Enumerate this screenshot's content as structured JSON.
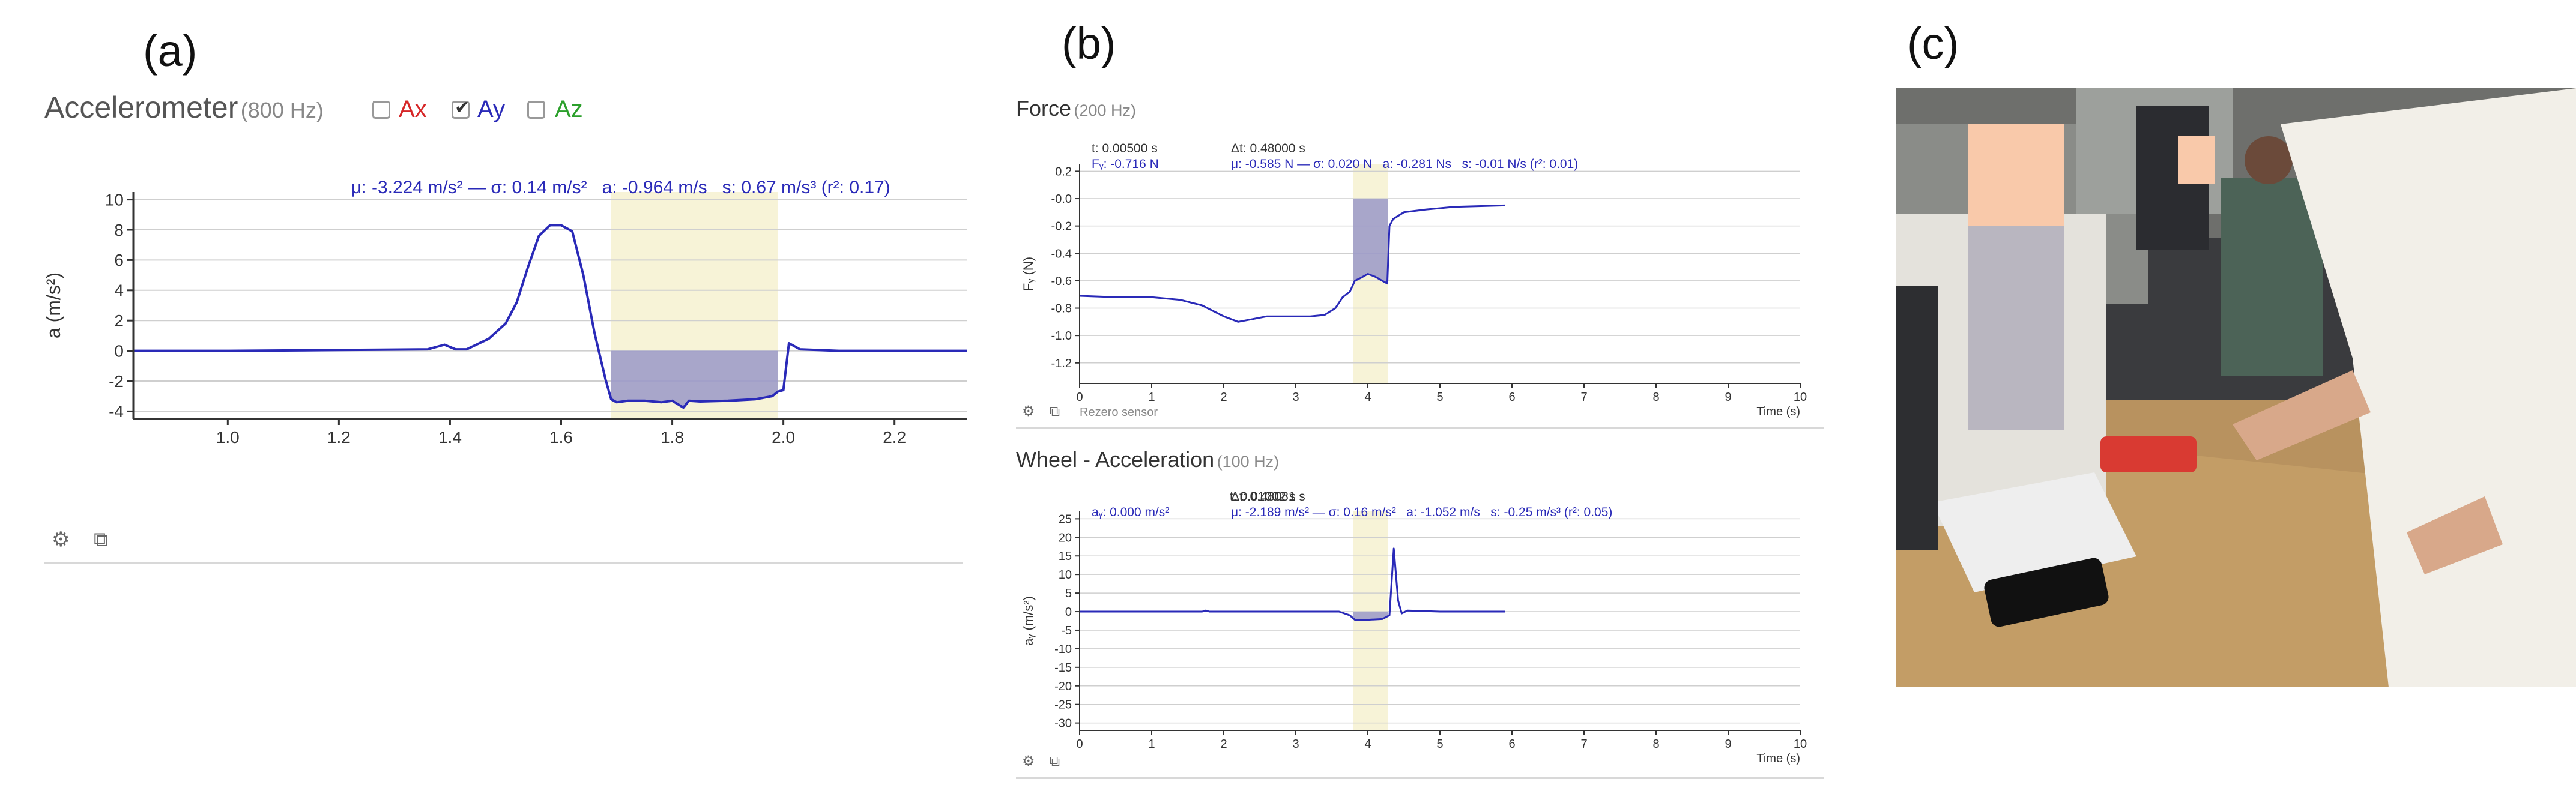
{
  "panel_labels": {
    "a": "(a)",
    "b": "(b)",
    "c": "(c)"
  },
  "accelerometer": {
    "title": "Accelerometer",
    "rate": "(800 Hz)",
    "checkboxes": [
      {
        "label": "Ax",
        "checked": false,
        "color": "#d62728"
      },
      {
        "label": "Ay",
        "checked": true,
        "color": "#2a2ab8"
      },
      {
        "label": "Az",
        "checked": false,
        "color": "#2ca02c"
      }
    ],
    "stats_text": "μ: -3.224 m/s² — σ: 0.14 m/s²   a: -0.964 m/s   s: 0.67 m/s³ (r²: 0.17)",
    "icons": [
      "gear-icon",
      "external-link-icon"
    ]
  },
  "force": {
    "title": "Force",
    "rate": "(200 Hz)",
    "readout_t": "t: 0.00500 s",
    "readout_dt": "Δt: 0.48000 s",
    "readout_val": "Fᵧ: -0.716 N",
    "readout_stats": "μ: -0.585 N — σ: 0.020 N   a: -0.281 Ns   s: -0.01 N/s (r²: 0.01)",
    "rezero": "Rezero sensor",
    "icons": [
      "gear-icon",
      "external-link-icon"
    ]
  },
  "wheel": {
    "title": "Wheel - Acceleration",
    "rate": "(100 Hz)",
    "readout_t": "t: 0.01002 s",
    "readout_dt": "Δt: 0.48081 s",
    "readout_val": "aᵧ: 0.000 m/s²",
    "readout_stats": "μ: -2.189 m/s² — σ: 0.16 m/s²   a: -1.052 m/s   s: -0.25 m/s³ (r²: 0.05)",
    "icons": [
      "gear-icon",
      "external-link-icon"
    ]
  },
  "colors": {
    "line": "#2a2ab8",
    "selection": "#f7f3d7",
    "fill": "#9a98c8",
    "grid": "#cfcfcf"
  },
  "chart_data": [
    {
      "id": "accelerometer",
      "type": "line",
      "title": "",
      "xlabel": "",
      "ylabel": "a (m/s²)",
      "xlim": [
        0.83,
        2.33
      ],
      "ylim": [
        -4.5,
        10.5
      ],
      "xticks": [
        "1.0",
        "1.2",
        "1.4",
        "1.6",
        "1.8",
        "2.0",
        "2.2"
      ],
      "yticks": [
        "10",
        "8",
        "6",
        "4",
        "2",
        "0",
        "-2",
        "-4"
      ],
      "selection_x": [
        1.69,
        1.99
      ],
      "fill_between": {
        "x": [
          1.69,
          1.99
        ],
        "baseline": 0
      },
      "series": [
        {
          "x": [
            0.83,
            1.0,
            1.2,
            1.36,
            1.39,
            1.41,
            1.43,
            1.47,
            1.5,
            1.52,
            1.54,
            1.56,
            1.58,
            1.6,
            1.62,
            1.64,
            1.66,
            1.68,
            1.69,
            1.7,
            1.72,
            1.75,
            1.78,
            1.8,
            1.82,
            1.83,
            1.85,
            1.9,
            1.95,
            1.98,
            1.99,
            2.0,
            2.01,
            2.03,
            2.1,
            2.2,
            2.33
          ],
          "y": [
            0,
            0,
            0.05,
            0.1,
            0.4,
            0.1,
            0.1,
            0.8,
            1.8,
            3.2,
            5.5,
            7.6,
            8.3,
            8.3,
            7.9,
            5.0,
            1.2,
            -1.9,
            -3.2,
            -3.4,
            -3.3,
            -3.3,
            -3.4,
            -3.3,
            -3.75,
            -3.3,
            -3.35,
            -3.3,
            -3.2,
            -3.0,
            -2.7,
            -2.6,
            0.5,
            0.1,
            0.0,
            0.0,
            0.0
          ]
        }
      ]
    },
    {
      "id": "force",
      "type": "line",
      "title": "",
      "xlabel": "Time (s)",
      "ylabel": "Fᵧ (N)",
      "xlim": [
        0,
        10
      ],
      "ylim": [
        -1.35,
        0.25
      ],
      "xticks": [
        "0",
        "1",
        "2",
        "3",
        "4",
        "5",
        "6",
        "7",
        "8",
        "9",
        "10"
      ],
      "yticks": [
        "0.2",
        "-0.0",
        "-0.2",
        "-0.4",
        "-0.6",
        "-0.8",
        "-1.0",
        "-1.2"
      ],
      "selection_x": [
        3.8,
        4.28
      ],
      "fill_between": {
        "x": [
          3.8,
          4.28
        ],
        "baseline": 0
      },
      "series": [
        {
          "x": [
            0.0,
            0.5,
            1.0,
            1.4,
            1.7,
            1.85,
            2.0,
            2.2,
            2.4,
            2.6,
            2.9,
            3.2,
            3.4,
            3.55,
            3.65,
            3.75,
            3.82,
            3.9,
            4.0,
            4.1,
            4.2,
            4.27,
            4.3,
            4.35,
            4.5,
            4.8,
            5.2,
            5.9
          ],
          "y": [
            -0.71,
            -0.72,
            -0.72,
            -0.74,
            -0.78,
            -0.82,
            -0.86,
            -0.9,
            -0.88,
            -0.86,
            -0.86,
            -0.86,
            -0.85,
            -0.8,
            -0.72,
            -0.68,
            -0.6,
            -0.58,
            -0.55,
            -0.57,
            -0.6,
            -0.62,
            -0.2,
            -0.15,
            -0.1,
            -0.08,
            -0.06,
            -0.05
          ]
        }
      ]
    },
    {
      "id": "wheel",
      "type": "line",
      "title": "",
      "xlabel": "Time (s)",
      "ylabel": "aᵧ (m/s²)",
      "xlim": [
        0,
        10
      ],
      "ylim": [
        -32,
        27
      ],
      "xticks": [
        "0",
        "1",
        "2",
        "3",
        "4",
        "5",
        "6",
        "7",
        "8",
        "9",
        "10"
      ],
      "yticks": [
        "25",
        "20",
        "15",
        "10",
        "5",
        "0",
        "-5",
        "-10",
        "-15",
        "-20",
        "-25",
        "-30"
      ],
      "selection_x": [
        3.8,
        4.28
      ],
      "fill_between": {
        "x": [
          3.8,
          4.28
        ],
        "baseline": 0
      },
      "series": [
        {
          "x": [
            0.0,
            1.7,
            1.75,
            1.8,
            3.6,
            3.75,
            3.82,
            4.0,
            4.2,
            4.3,
            4.36,
            4.42,
            4.47,
            4.55,
            5.0,
            5.9
          ],
          "y": [
            0,
            0,
            0.3,
            0,
            0,
            -1.0,
            -2.2,
            -2.2,
            -2.0,
            -1.0,
            17.0,
            3.0,
            -0.5,
            0.3,
            0,
            0
          ]
        }
      ]
    }
  ]
}
